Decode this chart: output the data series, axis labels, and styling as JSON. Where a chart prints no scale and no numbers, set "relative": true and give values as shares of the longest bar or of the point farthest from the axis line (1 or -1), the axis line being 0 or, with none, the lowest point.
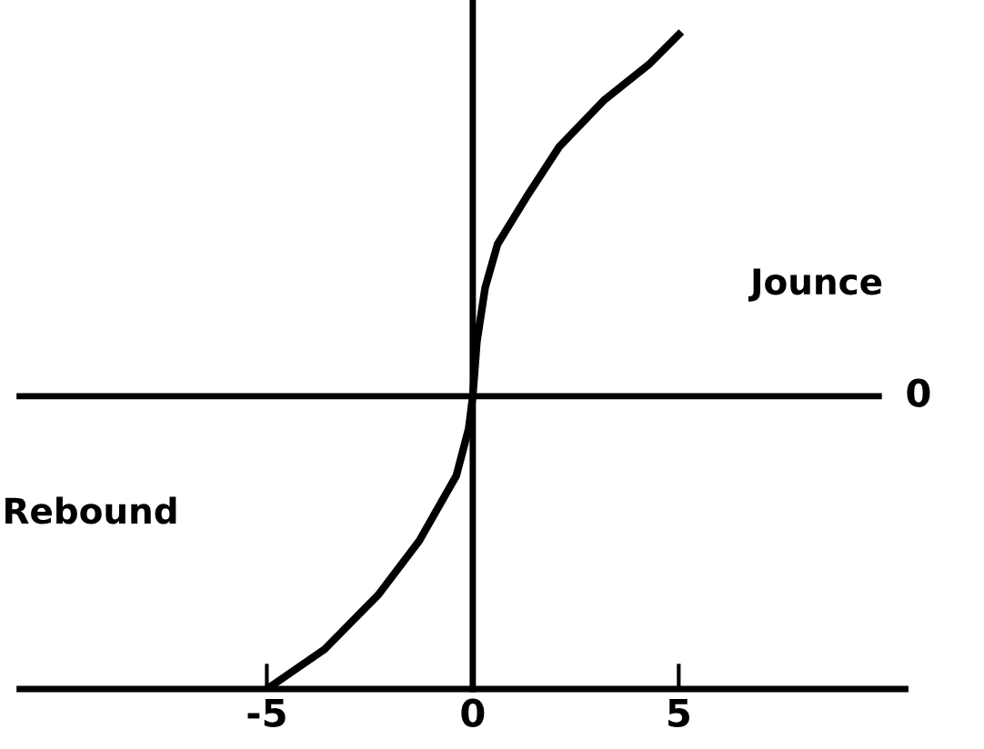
{
  "chart_data": {
    "type": "line",
    "relative": true,
    "color": "#000000",
    "x": [
      -5,
      -3.6,
      -2.3,
      -1.3,
      -0.4,
      -0.1,
      0,
      0.1,
      0.3,
      0.6,
      1.3,
      2.1,
      3.2,
      4.3,
      5
    ],
    "values": [
      -0.81,
      -0.7,
      -0.55,
      -0.4,
      -0.22,
      -0.09,
      0,
      0.15,
      0.3,
      0.42,
      0.55,
      0.69,
      0.82,
      0.92,
      1
    ],
    "xlim": [
      -11,
      10.5
    ],
    "xticks": [
      -5,
      0,
      5
    ],
    "ref_lines": [
      {
        "axis": "y",
        "value": 0,
        "label": "0"
      },
      {
        "axis": "x",
        "value": 0,
        "label": null
      }
    ],
    "annotations": [
      "Jounce",
      "Rebound"
    ],
    "grid": false,
    "legend": false
  }
}
